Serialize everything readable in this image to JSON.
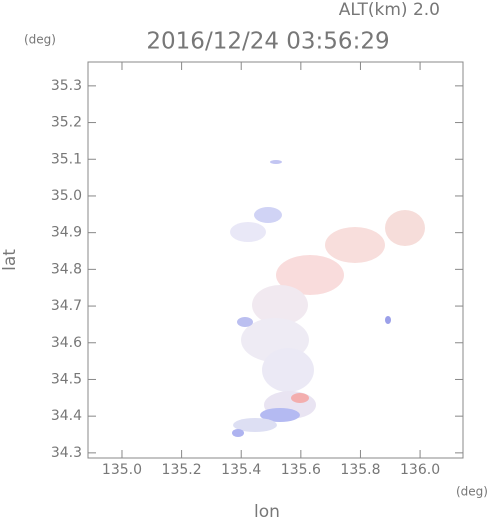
{
  "chart_data": {
    "type": "map",
    "title": "2016/12/24 03:56:29",
    "annotation": "ALT(km) 2.0",
    "y_unit": "(deg)",
    "x_unit": "(deg)",
    "xlabel": "lon",
    "ylabel": "lat",
    "xlim": [
      134.886,
      136.144
    ],
    "ylim": [
      34.286,
      35.365
    ],
    "xticks": [
      {
        "value": 135,
        "label": "135.0"
      },
      135.2,
      135.4,
      135.6,
      135.8,
      {
        "value": 136,
        "label": "136.0"
      }
    ],
    "yticks": [
      34.3,
      34.4,
      34.5,
      34.6,
      34.7,
      34.8,
      34.9,
      {
        "value": 35,
        "label": "35.0"
      },
      35.1,
      35.2,
      35.3
    ],
    "color": "#888888"
  }
}
